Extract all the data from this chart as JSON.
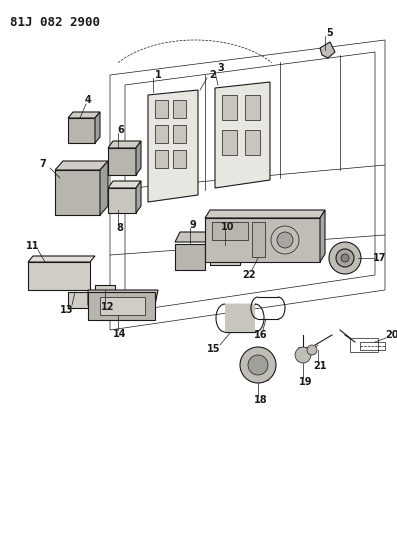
{
  "title": "81J 082 2900",
  "bg_color": "#f0eeeb",
  "paper_color": "#f5f3f0",
  "line_color": "#1a1a1a",
  "gray_fill": "#b8b4ae",
  "light_gray": "#d4d0ca",
  "dark_gray": "#888480",
  "title_fontsize": 9,
  "label_fontsize": 7,
  "figw": 3.97,
  "figh": 5.33
}
